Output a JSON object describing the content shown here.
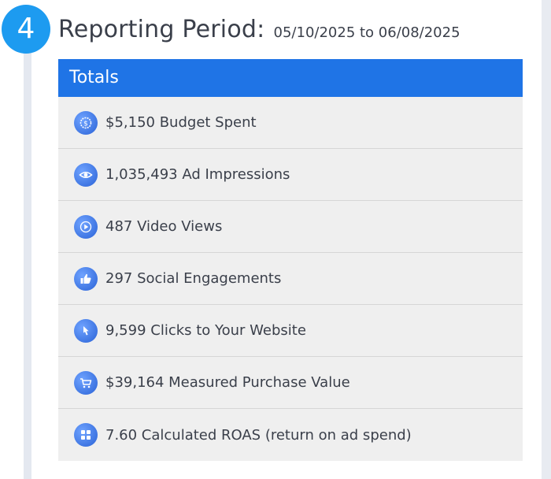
{
  "step_number": "4",
  "reporting": {
    "label": "Reporting Period:",
    "range": "05/10/2025 to 06/08/2025"
  },
  "totals": {
    "title": "Totals",
    "rows": [
      {
        "icon": "budget-icon",
        "text": "$5,150 Budget Spent"
      },
      {
        "icon": "eye-icon",
        "text": "1,035,493 Ad Impressions"
      },
      {
        "icon": "play-icon",
        "text": " 487 Video Views"
      },
      {
        "icon": "thumbs-up-icon",
        "text": "297 Social Engagements"
      },
      {
        "icon": "pointer-icon",
        "text": "9,599 Clicks to Your Website"
      },
      {
        "icon": "cart-icon",
        "text": "$39,164 Measured Purchase Value"
      },
      {
        "icon": "calculator-icon",
        "text": "7.60 Calculated ROAS (return on ad spend)"
      }
    ]
  },
  "colors": {
    "badge": "#1d9bf0",
    "header": "#1f74e6",
    "row_background": "#efefef",
    "icon": "#2a62d6"
  }
}
